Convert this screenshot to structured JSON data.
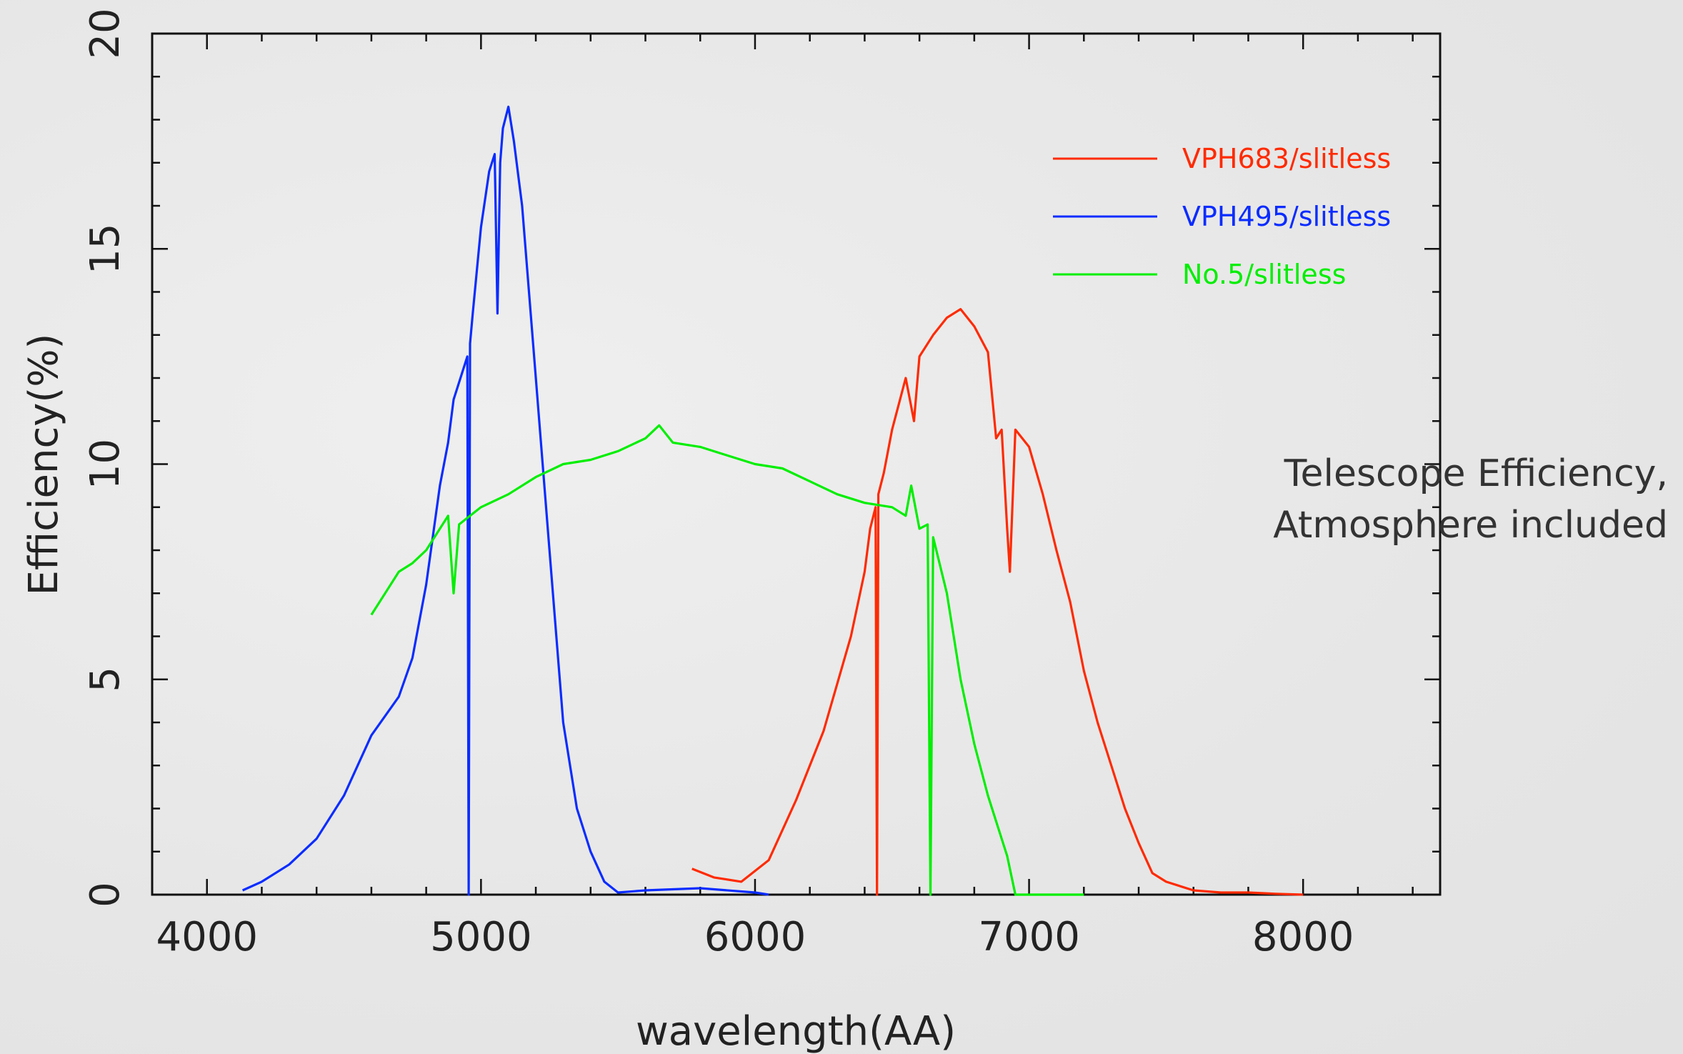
{
  "chart_data": {
    "type": "line",
    "xlabel": "wavelength(AA)",
    "ylabel": "Efficiency(%)",
    "xlim": [
      3800,
      8500
    ],
    "ylim": [
      0,
      20
    ],
    "xticks": [
      4000,
      5000,
      6000,
      7000,
      8000
    ],
    "yticks": [
      0,
      5,
      10,
      15,
      20
    ],
    "grid": false,
    "legend_position": "top-right",
    "annotation": [
      "Telescope Efficiency,",
      "Atmosphere included"
    ],
    "series": [
      {
        "name": "VPH683/slitless",
        "color": "#ff2a00",
        "x": [
          5770,
          5850,
          5950,
          6050,
          6150,
          6250,
          6350,
          6400,
          6420,
          6440,
          6445,
          6450,
          6470,
          6500,
          6550,
          6580,
          6600,
          6650,
          6700,
          6750,
          6800,
          6850,
          6880,
          6900,
          6920,
          6930,
          6950,
          7000,
          7050,
          7100,
          7150,
          7200,
          7250,
          7300,
          7350,
          7400,
          7450,
          7500,
          7600,
          7700,
          7800,
          7900,
          8000
        ],
        "y": [
          0.6,
          0.4,
          0.3,
          0.8,
          2.2,
          3.8,
          6.0,
          7.5,
          8.5,
          9.0,
          0.0,
          9.3,
          9.8,
          10.8,
          12.0,
          11.0,
          12.5,
          13.0,
          13.4,
          13.6,
          13.2,
          12.6,
          10.6,
          10.8,
          8.5,
          7.5,
          10.8,
          10.4,
          9.3,
          8.0,
          6.8,
          5.2,
          4.0,
          3.0,
          2.0,
          1.2,
          0.5,
          0.3,
          0.1,
          0.05,
          0.05,
          0.02,
          0.0
        ]
      },
      {
        "name": "VPH495/slitless",
        "color": "#0a2cff",
        "x": [
          4130,
          4200,
          4300,
          4400,
          4500,
          4600,
          4700,
          4750,
          4800,
          4850,
          4880,
          4900,
          4950,
          4955,
          4960,
          4970,
          5000,
          5030,
          5050,
          5060,
          5070,
          5080,
          5100,
          5120,
          5150,
          5200,
          5250,
          5300,
          5350,
          5400,
          5450,
          5500,
          5600,
          5800,
          6000,
          6050
        ],
        "y": [
          0.1,
          0.3,
          0.7,
          1.3,
          2.3,
          3.7,
          4.6,
          5.5,
          7.2,
          9.5,
          10.5,
          11.5,
          12.5,
          0.0,
          12.8,
          13.5,
          15.5,
          16.8,
          17.2,
          13.5,
          17.0,
          17.8,
          18.3,
          17.5,
          16.0,
          12.0,
          8.0,
          4.0,
          2.0,
          1.0,
          0.3,
          0.05,
          0.1,
          0.15,
          0.05,
          0.0
        ]
      },
      {
        "name": "No.5/slitless",
        "color": "#00ee00",
        "x": [
          4600,
          4650,
          4700,
          4750,
          4800,
          4850,
          4880,
          4900,
          4920,
          5000,
          5100,
          5200,
          5300,
          5400,
          5500,
          5600,
          5650,
          5700,
          5800,
          5900,
          6000,
          6100,
          6200,
          6300,
          6400,
          6500,
          6550,
          6570,
          6600,
          6630,
          6640,
          6650,
          6700,
          6750,
          6800,
          6850,
          6900,
          6920,
          6950,
          7000,
          7100,
          7200
        ],
        "y": [
          6.5,
          7.0,
          7.5,
          7.7,
          8.0,
          8.5,
          8.8,
          7.0,
          8.6,
          9.0,
          9.3,
          9.7,
          10.0,
          10.1,
          10.3,
          10.6,
          10.9,
          10.5,
          10.4,
          10.2,
          10.0,
          9.9,
          9.6,
          9.3,
          9.1,
          9.0,
          8.8,
          9.5,
          8.5,
          8.6,
          0.0,
          8.3,
          7.0,
          5.0,
          3.5,
          2.3,
          1.3,
          0.9,
          0.0,
          0.0,
          0.0,
          0.0
        ]
      }
    ]
  }
}
